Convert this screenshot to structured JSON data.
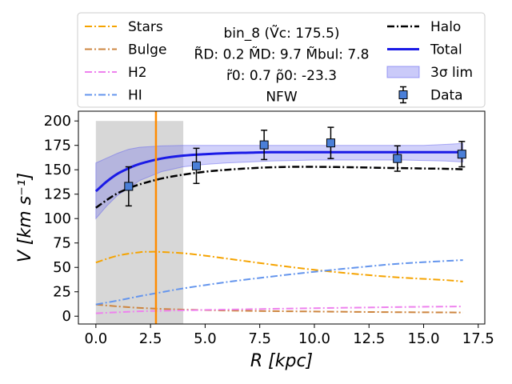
{
  "chart_data": {
    "type": "line",
    "title": "bin_8 (Ṽc: 175.5)",
    "xlabel": "R [kpc]",
    "ylabel": "V [km s⁻¹]",
    "xlim": [
      -0.8,
      17.8
    ],
    "ylim": [
      -8,
      210
    ],
    "x_ticks": [
      0.0,
      2.5,
      5.0,
      7.5,
      10.0,
      12.5,
      15.0,
      17.5
    ],
    "x_tick_labels": [
      "0.0",
      "2.5",
      "5.0",
      "7.5",
      "10.0",
      "12.5",
      "15.0",
      "17.5"
    ],
    "y_ticks": [
      0,
      25,
      50,
      75,
      100,
      125,
      150,
      175,
      200
    ],
    "y_tick_labels": [
      "0",
      "25",
      "50",
      "75",
      "100",
      "125",
      "150",
      "175",
      "200"
    ],
    "info_lines": [
      "bin_8 (Ṽc: 175.5)",
      "R̃D: 0.2  M̃D: 9.7 M̃bul: 7.8",
      "r̃0: 0.7   ρ̃0: -23.3",
      "NFW"
    ],
    "shaded_region": {
      "x0": 0.0,
      "x1": 4.0,
      "y0": -8,
      "y1": 200,
      "color": "#d3d3d3"
    },
    "vertical_line": {
      "x": 2.75,
      "color": "#ff8c00"
    },
    "series": [
      {
        "name": "Stars",
        "color": "#f5a300",
        "style": "dashdot",
        "width": 2,
        "x": [
          0,
          1,
          2,
          2.5,
          3,
          4,
          5,
          6,
          8,
          10,
          12,
          14,
          16,
          16.8
        ],
        "y": [
          55,
          62,
          65.5,
          66,
          65.8,
          64.5,
          62,
          59,
          53,
          47.5,
          43,
          39.5,
          37,
          35.5
        ]
      },
      {
        "name": "Bulge",
        "color": "#cd853f",
        "style": "dashdot",
        "width": 2,
        "x": [
          0,
          1,
          2,
          3,
          4,
          6,
          8,
          10,
          12,
          14,
          16.8
        ],
        "y": [
          12,
          10,
          8.5,
          7.5,
          6.8,
          5.8,
          5.2,
          4.8,
          4.4,
          4.1,
          3.8
        ]
      },
      {
        "name": "H2",
        "color": "#ee82ee",
        "style": "dashdot",
        "width": 2,
        "x": [
          0,
          1,
          2,
          3,
          4,
          6,
          8,
          10,
          12,
          14,
          16.8
        ],
        "y": [
          3,
          4,
          5,
          5.5,
          6,
          6.8,
          7.5,
          8.2,
          8.8,
          9.4,
          10
        ]
      },
      {
        "name": "HI",
        "color": "#6495ed",
        "style": "dashdot",
        "width": 2,
        "x": [
          0,
          1,
          2,
          3,
          4,
          6,
          8,
          10,
          12,
          14,
          16.8
        ],
        "y": [
          12,
          16,
          20.5,
          24.5,
          28.5,
          35,
          40.5,
          45.5,
          50,
          54,
          57.5
        ]
      },
      {
        "name": "Halo",
        "color": "#000000",
        "style": "dashdot",
        "width": 2.5,
        "x": [
          0,
          0.5,
          1,
          1.5,
          2,
          3,
          4,
          5,
          6,
          7,
          8,
          9,
          10,
          11,
          12,
          13,
          14,
          15,
          16,
          16.8
        ],
        "y": [
          111,
          119,
          126,
          131,
          135,
          141,
          145,
          148,
          150,
          151.5,
          152.5,
          153,
          153,
          152.8,
          152.5,
          152,
          151.7,
          151.3,
          151,
          150.5
        ]
      },
      {
        "name": "Total",
        "color": "#1a1ae6",
        "style": "solid",
        "width": 3,
        "x": [
          0,
          0.5,
          1,
          1.5,
          2,
          3,
          4,
          5,
          6,
          7,
          8,
          9,
          10,
          11,
          12,
          13,
          14,
          15,
          16,
          16.8
        ],
        "y": [
          128,
          138,
          146,
          151.5,
          156,
          161.5,
          164.5,
          166,
          167,
          167.5,
          168,
          168,
          168,
          168,
          168,
          168,
          168,
          168,
          168,
          168
        ]
      }
    ],
    "band": {
      "name": "3σ lim",
      "color": "#6666ee",
      "opacity": 0.3,
      "x": [
        0,
        0.5,
        1,
        1.5,
        2,
        3,
        4,
        5,
        6,
        7,
        8,
        9,
        10,
        11,
        12,
        13,
        14,
        15,
        16,
        16.8
      ],
      "upper": [
        157,
        162,
        167,
        171,
        173,
        174.5,
        175,
        175,
        175,
        175,
        175,
        175,
        175,
        175,
        175,
        175,
        175,
        175,
        176,
        177
      ],
      "lower": [
        100,
        113,
        124,
        131,
        139,
        148,
        153,
        155.5,
        157,
        158,
        159,
        159.5,
        160,
        160,
        160,
        160,
        160,
        159.5,
        159,
        158
      ]
    },
    "data_points": {
      "name": "Data",
      "color": "#4a7fd8",
      "x": [
        1.5,
        4.6,
        7.7,
        10.75,
        13.8,
        16.75
      ],
      "y": [
        133,
        154,
        175.5,
        177.5,
        161.5,
        166
      ],
      "err": [
        20,
        18,
        15,
        16,
        13,
        13
      ]
    },
    "legend_left": [
      "Stars",
      "Bulge",
      "H2",
      "HI"
    ],
    "legend_right": [
      "Halo",
      "Total",
      "3σ lim",
      "Data"
    ]
  }
}
